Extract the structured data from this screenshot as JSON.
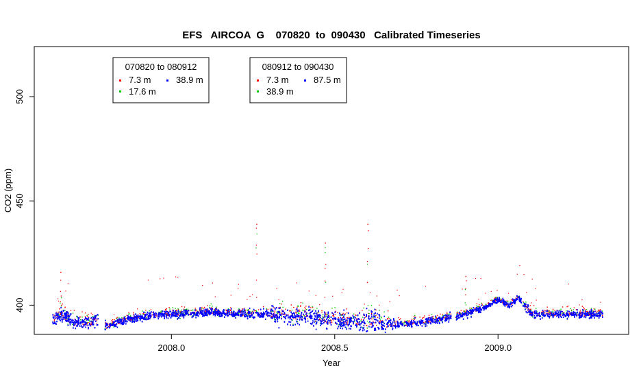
{
  "chart_data": {
    "type": "scatter",
    "title": "EFS   AIRCOA  G    070820  to  090430   Calibrated Timeseries",
    "xlabel": "Year",
    "ylabel": "CO2 (ppm)",
    "xlim": [
      2007.58,
      2009.4
    ],
    "ylim": [
      386,
      524
    ],
    "x_ticks": [
      2008.0,
      2008.5,
      2009.0
    ],
    "x_tick_labels": [
      "2008.0",
      "2008.5",
      "2009.0"
    ],
    "y_ticks": [
      400,
      450,
      500
    ],
    "y_tick_labels": [
      "400",
      "450",
      "500"
    ],
    "series_colors": {
      "7.3 m": "#ff0000",
      "17.6 m": "#00cc00",
      "38.9 m": "#00cc00",
      "87.5 m": "#0000ff"
    },
    "legends": [
      {
        "title": "070820 to 080912",
        "entries": [
          {
            "label": "7.3 m",
            "color": "#ff0000"
          },
          {
            "label": "38.9 m",
            "color": "#0000ff"
          },
          {
            "label": "17.6 m",
            "color": "#00cc00"
          }
        ]
      },
      {
        "title": "080912 to 090430",
        "entries": [
          {
            "label": "7.3 m",
            "color": "#ff0000"
          },
          {
            "label": "87.5 m",
            "color": "#0000ff"
          },
          {
            "label": "38.9 m",
            "color": "#00cc00"
          }
        ]
      }
    ],
    "baseline_profile": [
      {
        "x": 2007.635,
        "y": 393
      },
      {
        "x": 2007.66,
        "y": 396
      },
      {
        "x": 2007.7,
        "y": 392
      },
      {
        "x": 2007.78,
        "y": 392
      },
      {
        "x": 2007.8,
        "y": 390
      },
      {
        "x": 2007.85,
        "y": 393
      },
      {
        "x": 2007.92,
        "y": 395
      },
      {
        "x": 2008.0,
        "y": 396
      },
      {
        "x": 2008.1,
        "y": 397
      },
      {
        "x": 2008.2,
        "y": 396
      },
      {
        "x": 2008.3,
        "y": 396
      },
      {
        "x": 2008.4,
        "y": 395
      },
      {
        "x": 2008.5,
        "y": 393
      },
      {
        "x": 2008.6,
        "y": 392
      },
      {
        "x": 2008.7,
        "y": 391
      },
      {
        "x": 2008.8,
        "y": 393
      },
      {
        "x": 2008.9,
        "y": 396
      },
      {
        "x": 2008.95,
        "y": 399
      },
      {
        "x": 2009.0,
        "y": 403
      },
      {
        "x": 2009.03,
        "y": 400
      },
      {
        "x": 2009.06,
        "y": 404
      },
      {
        "x": 2009.1,
        "y": 396
      },
      {
        "x": 2009.2,
        "y": 396
      },
      {
        "x": 2009.32,
        "y": 396
      }
    ],
    "gaps": [
      [
        2007.775,
        2007.795
      ],
      [
        2008.855,
        2008.868
      ],
      [
        2009.07,
        2009.075
      ]
    ],
    "notable_peaks": [
      {
        "x": 2007.66,
        "y": 416
      },
      {
        "x": 2008.26,
        "y": 439
      },
      {
        "x": 2008.6,
        "y": 439
      },
      {
        "x": 2008.47,
        "y": 430
      },
      {
        "x": 2008.9,
        "y": 414
      }
    ]
  }
}
